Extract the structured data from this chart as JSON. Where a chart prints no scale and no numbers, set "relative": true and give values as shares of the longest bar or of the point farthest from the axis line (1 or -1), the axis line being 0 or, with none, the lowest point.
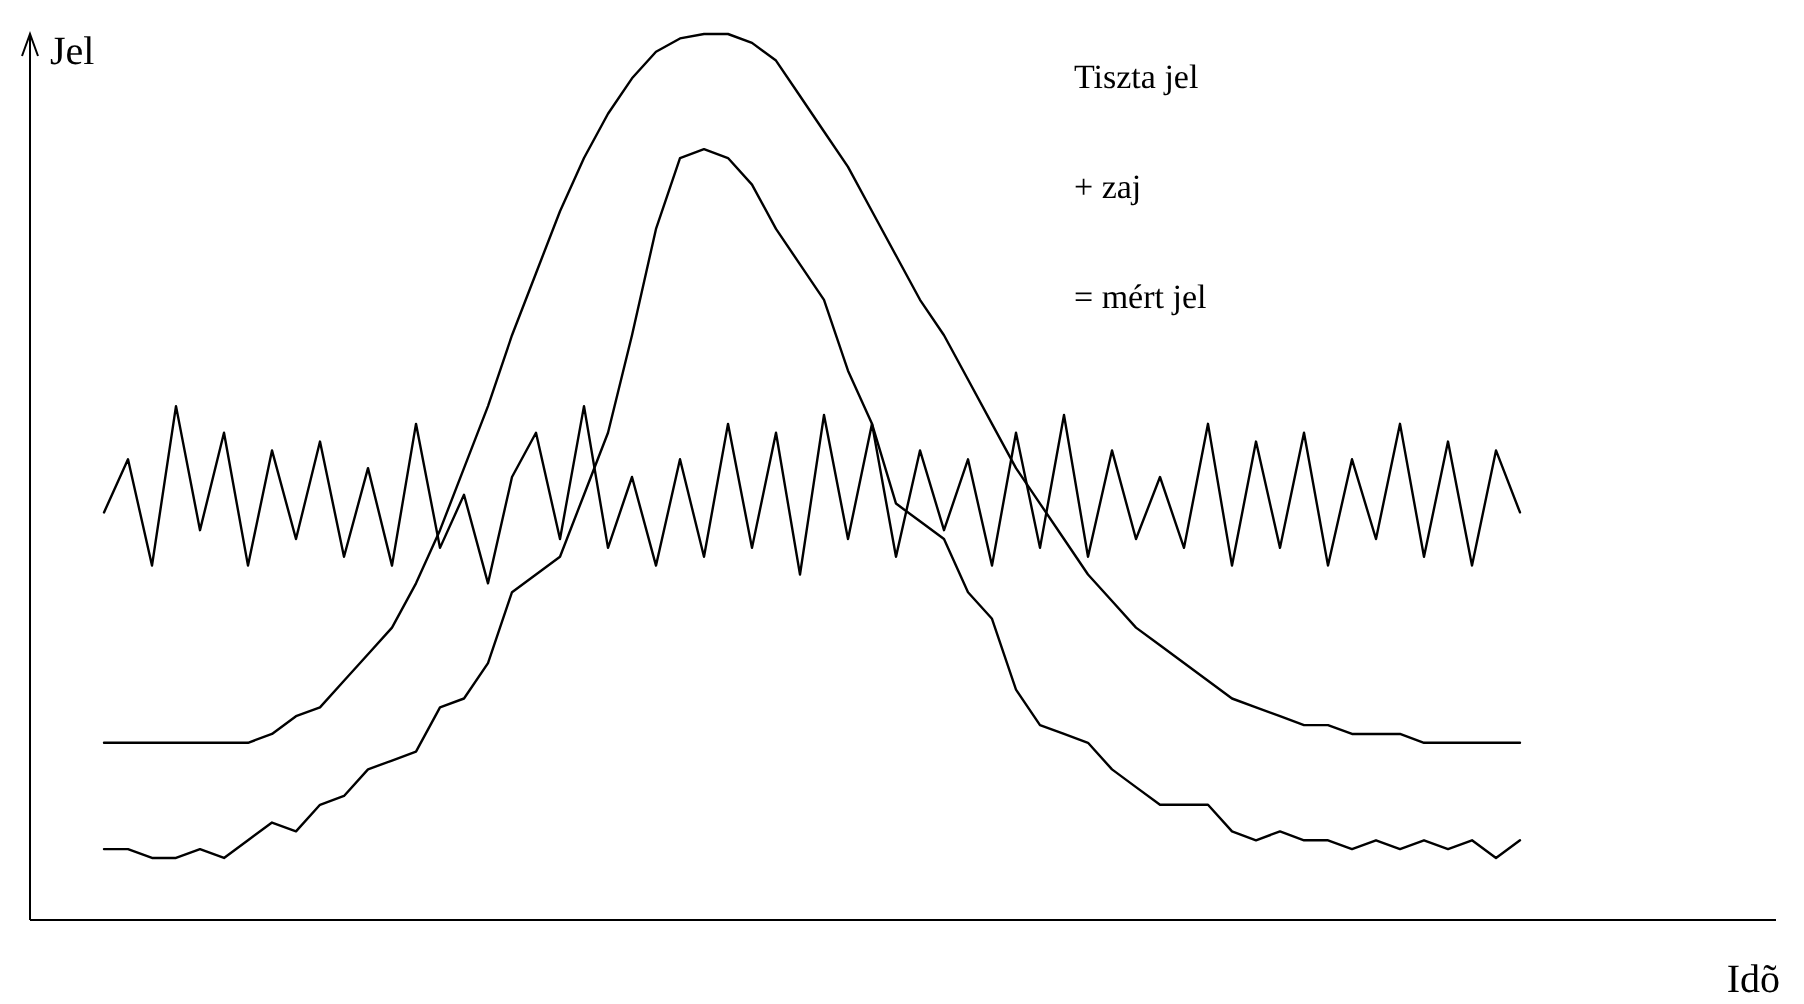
{
  "chart_data": {
    "type": "line",
    "relative": true,
    "ylabel": "Jel",
    "xlabel": "Idõ",
    "marker": "none",
    "line_style": "solid",
    "annotations": [
      "Tiszta jel",
      "+ zaj",
      "= mért jel"
    ],
    "categories": [
      null,
      null,
      null,
      null,
      null,
      null,
      null,
      null,
      null,
      null,
      null,
      null,
      null,
      null,
      null,
      null,
      null,
      null,
      null,
      null,
      null,
      null,
      null,
      null,
      null,
      null,
      null,
      null,
      null,
      null,
      null,
      null,
      null,
      null,
      null,
      null,
      null,
      null,
      null,
      null,
      null,
      null,
      null,
      null,
      null,
      null,
      null,
      null,
      null,
      null,
      null,
      null,
      null,
      null,
      null,
      null,
      null,
      null,
      null,
      null
    ],
    "series": [
      {
        "color": "#000000",
        "values": [
          0.2,
          0.2,
          0.2,
          0.2,
          0.2,
          0.2,
          0.2,
          0.21,
          0.23,
          0.24,
          0.27,
          0.3,
          0.33,
          0.38,
          0.44,
          0.51,
          0.58,
          0.66,
          0.73,
          0.8,
          0.86,
          0.91,
          0.95,
          0.98,
          0.995,
          1,
          1,
          0.99,
          0.97,
          0.93,
          0.89,
          0.85,
          0.8,
          0.75,
          0.7,
          0.66,
          0.61,
          0.56,
          0.51,
          0.47,
          0.43,
          0.39,
          0.36,
          0.33,
          0.31,
          0.29,
          0.27,
          0.25,
          0.24,
          0.23,
          0.22,
          0.22,
          0.21,
          0.21,
          0.21,
          0.2,
          0.2,
          0.2,
          0.2,
          0.2
        ]
      },
      {
        "color": "#000000",
        "values": [
          0.46,
          0.52,
          0.4,
          0.58,
          0.44,
          0.55,
          0.4,
          0.53,
          0.43,
          0.54,
          0.41,
          0.51,
          0.4,
          0.56,
          0.42,
          0.48,
          0.38,
          0.5,
          0.55,
          0.43,
          0.58,
          0.42,
          0.5,
          0.4,
          0.52,
          0.41,
          0.56,
          0.42,
          0.55,
          0.39,
          0.57,
          0.43,
          0.56,
          0.41,
          0.53,
          0.44,
          0.52,
          0.4,
          0.55,
          0.42,
          0.57,
          0.41,
          0.53,
          0.43,
          0.5,
          0.42,
          0.56,
          0.4,
          0.54,
          0.42,
          0.55,
          0.4,
          0.52,
          0.43,
          0.56,
          0.41,
          0.54,
          0.4,
          0.53,
          0.46
        ]
      },
      {
        "color": "#000000",
        "values": [
          0.08,
          0.08,
          0.07,
          0.07,
          0.08,
          0.07,
          0.09,
          0.11,
          0.1,
          0.13,
          0.14,
          0.17,
          0.18,
          0.19,
          0.24,
          0.25,
          0.29,
          0.37,
          0.39,
          0.41,
          0.48,
          0.55,
          0.66,
          0.78,
          0.86,
          0.87,
          0.86,
          0.83,
          0.78,
          0.74,
          0.7,
          0.62,
          0.56,
          0.47,
          0.45,
          0.43,
          0.37,
          0.34,
          0.26,
          0.22,
          0.21,
          0.2,
          0.17,
          0.15,
          0.13,
          0.13,
          0.13,
          0.1,
          0.09,
          0.1,
          0.09,
          0.09,
          0.08,
          0.09,
          0.08,
          0.09,
          0.08,
          0.09,
          0.07,
          0.09
        ]
      }
    ]
  }
}
